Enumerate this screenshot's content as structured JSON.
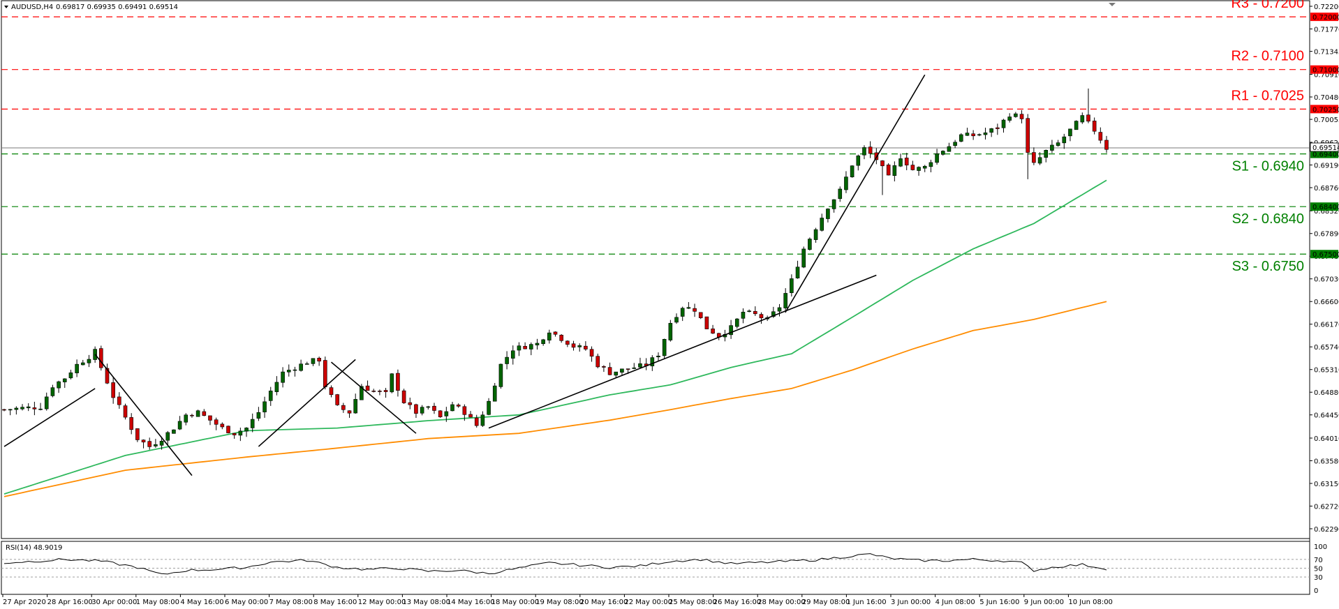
{
  "header": {
    "symbol": "AUDUSD,H4",
    "ohlc": "0.69817 0.69935 0.69491 0.69514"
  },
  "rsi_header": "RSI(14) 48.9019",
  "colors": {
    "resistance": "#ff0000",
    "support": "#008000",
    "ma_fast": "#2eb85c",
    "ma_slow": "#ff8c00",
    "bull_candle": "#006400",
    "bear_candle": "#cc0000",
    "trendline": "#000000",
    "current_price": "#7a7a7a"
  },
  "chart_data": {
    "type": "candlestick",
    "title": "AUDUSD,H4",
    "ylim": [
      0.6225,
      0.722
    ],
    "y_ticks": [
      "0.72200",
      "0.71770",
      "0.71345",
      "0.70910",
      "0.70480",
      "0.70055",
      "0.69620",
      "0.69190",
      "0.68760",
      "0.68320",
      "0.67890",
      "0.67460",
      "0.67030",
      "0.66600",
      "0.66170",
      "0.65740",
      "0.65310",
      "0.64880",
      "0.64450",
      "0.64010",
      "0.63580",
      "0.63150",
      "0.62720",
      "0.62290"
    ],
    "x_ticks": [
      "27 Apr 2020",
      "28 Apr 16:00",
      "30 Apr 00:00",
      "1 May 08:00",
      "4 May 16:00",
      "6 May 00:00",
      "7 May 08:00",
      "8 May 16:00",
      "12 May 00:00",
      "13 May 08:00",
      "14 May 16:00",
      "18 May 00:00",
      "19 May 08:00",
      "20 May 16:00",
      "22 May 00:00",
      "25 May 08:00",
      "26 May 16:00",
      "28 May 00:00",
      "29 May 08:00",
      "1 Jun 16:00",
      "3 Jun 00:00",
      "4 Jun 08:00",
      "5 Jun 16:00",
      "9 Jun 00:00",
      "10 Jun 08:00"
    ],
    "current_price": {
      "value": 0.69514,
      "label": "0.69514"
    },
    "levels": [
      {
        "name": "R3 - 0.7200",
        "value": 0.72,
        "tag": "0.72000",
        "kind": "resistance"
      },
      {
        "name": "R2 - 0.7100",
        "value": 0.71,
        "tag": "0.71000",
        "kind": "resistance"
      },
      {
        "name": "R1 - 0.7025",
        "value": 0.7025,
        "tag": "0.70250",
        "kind": "resistance"
      },
      {
        "name": "S1 - 0.6940",
        "value": 0.694,
        "tag": "0.69400",
        "kind": "support"
      },
      {
        "name": "S2 - 0.6840",
        "value": 0.684,
        "tag": "0.68400",
        "kind": "support"
      },
      {
        "name": "S3 - 0.6750",
        "value": 0.675,
        "tag": "0.67500",
        "kind": "support"
      }
    ],
    "price_path": [
      [
        0,
        0.6455
      ],
      [
        3,
        0.6458
      ],
      [
        6,
        0.646
      ],
      [
        8,
        0.65
      ],
      [
        10,
        0.6515
      ],
      [
        12,
        0.654
      ],
      [
        14,
        0.6555
      ],
      [
        15,
        0.6565
      ],
      [
        16,
        0.6535
      ],
      [
        18,
        0.648
      ],
      [
        20,
        0.644
      ],
      [
        22,
        0.64
      ],
      [
        24,
        0.6385
      ],
      [
        26,
        0.64
      ],
      [
        28,
        0.642
      ],
      [
        30,
        0.6445
      ],
      [
        32,
        0.645
      ],
      [
        34,
        0.6435
      ],
      [
        36,
        0.642
      ],
      [
        38,
        0.641
      ],
      [
        40,
        0.642
      ],
      [
        42,
        0.645
      ],
      [
        44,
        0.649
      ],
      [
        46,
        0.6525
      ],
      [
        48,
        0.6535
      ],
      [
        50,
        0.6545
      ],
      [
        52,
        0.655
      ],
      [
        53,
        0.65
      ],
      [
        55,
        0.646
      ],
      [
        57,
        0.645
      ],
      [
        59,
        0.65
      ],
      [
        61,
        0.649
      ],
      [
        63,
        0.6485
      ],
      [
        64,
        0.652
      ],
      [
        66,
        0.647
      ],
      [
        68,
        0.645
      ],
      [
        70,
        0.646
      ],
      [
        72,
        0.644
      ],
      [
        74,
        0.6465
      ],
      [
        76,
        0.645
      ],
      [
        78,
        0.6425
      ],
      [
        80,
        0.647
      ],
      [
        82,
        0.654
      ],
      [
        84,
        0.657
      ],
      [
        86,
        0.6575
      ],
      [
        88,
        0.658
      ],
      [
        90,
        0.6605
      ],
      [
        92,
        0.659
      ],
      [
        94,
        0.6575
      ],
      [
        96,
        0.657
      ],
      [
        98,
        0.654
      ],
      [
        100,
        0.6525
      ],
      [
        102,
        0.653
      ],
      [
        104,
        0.6535
      ],
      [
        106,
        0.654
      ],
      [
        108,
        0.656
      ],
      [
        110,
        0.662
      ],
      [
        112,
        0.665
      ],
      [
        114,
        0.6645
      ],
      [
        116,
        0.661
      ],
      [
        118,
        0.6595
      ],
      [
        120,
        0.661
      ],
      [
        122,
        0.664
      ],
      [
        124,
        0.6635
      ],
      [
        126,
        0.6625
      ],
      [
        128,
        0.665
      ],
      [
        130,
        0.67
      ],
      [
        132,
        0.676
      ],
      [
        134,
        0.68
      ],
      [
        136,
        0.684
      ],
      [
        138,
        0.687
      ],
      [
        140,
        0.692
      ],
      [
        142,
        0.695
      ],
      [
        144,
        0.693
      ],
      [
        146,
        0.6895
      ],
      [
        148,
        0.6935
      ],
      [
        150,
        0.691
      ],
      [
        152,
        0.6915
      ],
      [
        154,
        0.694
      ],
      [
        156,
        0.6955
      ],
      [
        158,
        0.6975
      ],
      [
        160,
        0.6975
      ],
      [
        162,
        0.698
      ],
      [
        164,
        0.699
      ],
      [
        166,
        0.7015
      ],
      [
        168,
        0.701
      ],
      [
        169,
        0.694
      ],
      [
        170,
        0.692
      ],
      [
        172,
        0.6945
      ],
      [
        174,
        0.696
      ],
      [
        176,
        0.6985
      ],
      [
        178,
        0.701
      ],
      [
        180,
        0.6985
      ],
      [
        182,
        0.6951
      ]
    ],
    "ma_fast": [
      [
        0,
        0.6295
      ],
      [
        20,
        0.6368
      ],
      [
        40,
        0.6415
      ],
      [
        55,
        0.642
      ],
      [
        70,
        0.6434
      ],
      [
        85,
        0.6445
      ],
      [
        100,
        0.6483
      ],
      [
        110,
        0.6502
      ],
      [
        120,
        0.6535
      ],
      [
        130,
        0.6561
      ],
      [
        140,
        0.663
      ],
      [
        150,
        0.67
      ],
      [
        160,
        0.676
      ],
      [
        170,
        0.6808
      ],
      [
        182,
        0.689
      ]
    ],
    "ma_slow": [
      [
        0,
        0.629
      ],
      [
        20,
        0.634
      ],
      [
        40,
        0.6365
      ],
      [
        55,
        0.6382
      ],
      [
        70,
        0.64
      ],
      [
        85,
        0.641
      ],
      [
        100,
        0.6435
      ],
      [
        110,
        0.6455
      ],
      [
        120,
        0.6476
      ],
      [
        130,
        0.6495
      ],
      [
        140,
        0.653
      ],
      [
        150,
        0.657
      ],
      [
        160,
        0.6605
      ],
      [
        170,
        0.6626
      ],
      [
        182,
        0.666
      ]
    ],
    "trendlines": [
      [
        [
          0,
          0.6385
        ],
        [
          15,
          0.6495
        ]
      ],
      [
        [
          15,
          0.656
        ],
        [
          31,
          0.633
        ]
      ],
      [
        [
          42,
          0.6385
        ],
        [
          58,
          0.655
        ]
      ],
      [
        [
          54,
          0.6545
        ],
        [
          68,
          0.641
        ]
      ],
      [
        [
          80,
          0.642
        ],
        [
          144,
          0.671
        ]
      ],
      [
        [
          129,
          0.664
        ],
        [
          152,
          0.709
        ]
      ]
    ],
    "rsi": {
      "label": "RSI(14) 48.9019",
      "ylim": [
        0,
        100
      ],
      "ticks": [
        "100",
        "70",
        "50",
        "30",
        "0"
      ],
      "levels": [
        70,
        50,
        30
      ],
      "values": [
        [
          0,
          62
        ],
        [
          10,
          70
        ],
        [
          16,
          66
        ],
        [
          22,
          52
        ],
        [
          26,
          35
        ],
        [
          30,
          45
        ],
        [
          36,
          48
        ],
        [
          40,
          52
        ],
        [
          44,
          64
        ],
        [
          50,
          68
        ],
        [
          55,
          52
        ],
        [
          60,
          47
        ],
        [
          65,
          50
        ],
        [
          70,
          43
        ],
        [
          75,
          45
        ],
        [
          80,
          38
        ],
        [
          85,
          50
        ],
        [
          90,
          62
        ],
        [
          95,
          57
        ],
        [
          100,
          52
        ],
        [
          105,
          55
        ],
        [
          110,
          66
        ],
        [
          115,
          70
        ],
        [
          120,
          60
        ],
        [
          125,
          63
        ],
        [
          130,
          66
        ],
        [
          135,
          70
        ],
        [
          140,
          78
        ],
        [
          143,
          82
        ],
        [
          146,
          73
        ],
        [
          150,
          68
        ],
        [
          155,
          67
        ],
        [
          160,
          70
        ],
        [
          165,
          67
        ],
        [
          168,
          62
        ],
        [
          170,
          45
        ],
        [
          174,
          54
        ],
        [
          178,
          58
        ],
        [
          182,
          49
        ]
      ]
    }
  }
}
